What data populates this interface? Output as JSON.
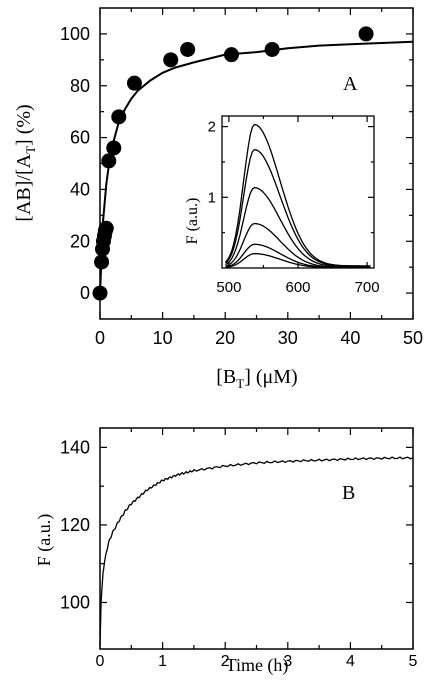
{
  "chart_data": [
    {
      "type": "scatter",
      "panel_label": "A",
      "xlabel": "[B_T] (μM)",
      "ylabel": "[AB]/[A_T] (%)",
      "xlim": [
        0,
        50
      ],
      "ylim": [
        -10,
        110
      ],
      "xticks": [
        0,
        10,
        20,
        30,
        40,
        50
      ],
      "yticks": [
        0,
        20,
        40,
        60,
        80,
        100
      ],
      "series": [
        {
          "kind": "points",
          "x": [
            0,
            0.25,
            0.4,
            0.55,
            0.7,
            0.85,
            1.0,
            1.4,
            2.2,
            3.0,
            5.5,
            11.3,
            14.0,
            21.0,
            27.5,
            42.5
          ],
          "y": [
            0,
            12,
            17,
            20,
            22,
            24,
            25,
            51,
            56,
            68,
            81,
            90,
            94,
            92,
            94,
            100
          ]
        },
        {
          "kind": "fit",
          "x": [
            0,
            0.5,
            1,
            1.5,
            2,
            3,
            4,
            5,
            6,
            8,
            10,
            12,
            15,
            20,
            25,
            30,
            35,
            40,
            45,
            50
          ],
          "y": [
            0,
            28,
            42,
            51,
            57,
            66,
            71,
            75,
            78,
            82,
            85,
            87,
            89,
            92,
            93,
            94.5,
            95.5,
            96,
            96.5,
            97
          ]
        }
      ],
      "inset": {
        "type": "line",
        "ylabel": "F (a.u.)",
        "xlim": [
          490,
          710
        ],
        "ylim": [
          0,
          2.15
        ],
        "xticks": [
          500,
          600,
          700
        ],
        "yticks": [
          1,
          2
        ],
        "peak_x": 537,
        "peak_heights": [
          2.0,
          1.65,
          1.12,
          0.62,
          0.33,
          0.2
        ]
      }
    },
    {
      "type": "line",
      "panel_label": "B",
      "xlabel": "Time (h)",
      "ylabel": "F (a.u.)",
      "xlim": [
        0,
        5
      ],
      "ylim": [
        88,
        145
      ],
      "xticks": [
        0,
        1,
        2,
        3,
        4,
        5
      ],
      "yticks": [
        100,
        120,
        140
      ],
      "series": [
        {
          "x": [
            0,
            0.02,
            0.05,
            0.1,
            0.15,
            0.2,
            0.3,
            0.4,
            0.5,
            0.75,
            1.0,
            1.25,
            1.5,
            2.0,
            2.5,
            3.0,
            3.5,
            4.0,
            4.5,
            5.0
          ],
          "y": [
            89,
            101,
            108,
            113,
            116,
            118,
            121,
            123.5,
            125.5,
            129,
            131.5,
            133,
            134,
            135.2,
            136,
            136.4,
            136.7,
            137,
            137.2,
            137.3
          ]
        }
      ]
    }
  ]
}
